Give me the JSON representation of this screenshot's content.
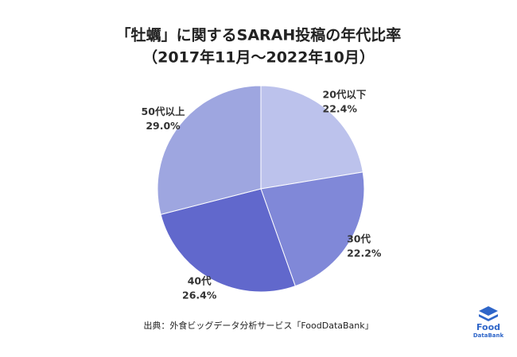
{
  "chart_data": {
    "type": "pie",
    "title": "「牡蠣」に関するSARAH投稿の年代比率",
    "subtitle": "（2017年11月〜2022年10月）",
    "categories": [
      "20代以下",
      "30代",
      "40代",
      "50代以上"
    ],
    "values": [
      22.4,
      22.2,
      26.4,
      29.0
    ],
    "value_labels": [
      "22.4%",
      "22.2%",
      "26.4%",
      "29.0%"
    ],
    "colors": [
      "#bcc2ec",
      "#8088d8",
      "#6168cc",
      "#9ea6e0"
    ],
    "source": "出典：外食ビッグデータ分析サービス「FoodDataBank」",
    "logo": [
      "Food",
      "DataBank"
    ]
  }
}
